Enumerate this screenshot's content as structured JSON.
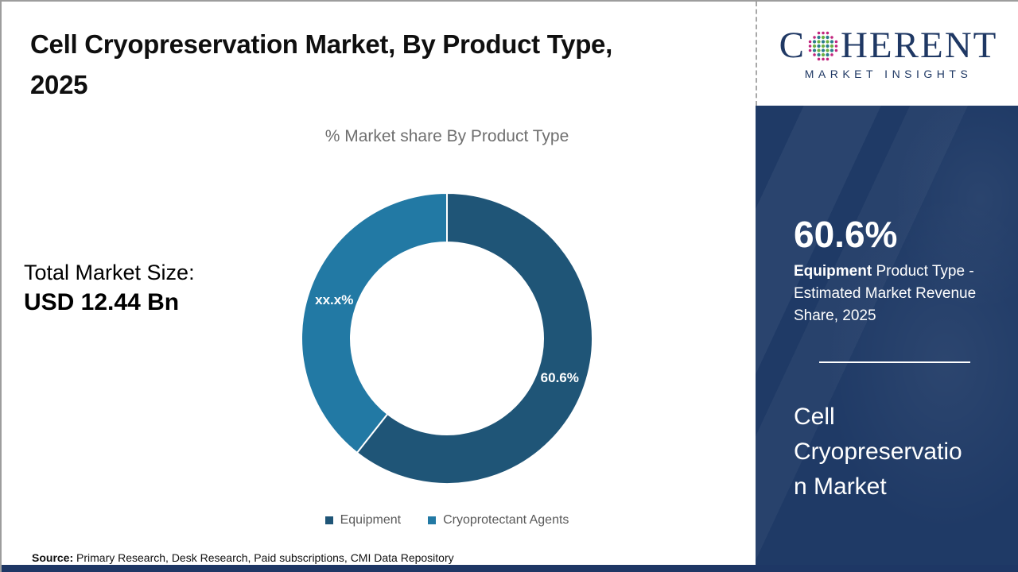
{
  "page": {
    "title_line1": "Cell Cryopreservation Market, By Product Type,",
    "title_line2": "2025",
    "source_label": "Source:",
    "source_text": " Primary Research, Desk Research, Paid subscriptions, CMI Data Repository"
  },
  "logo": {
    "word_start": "C",
    "word_end": "HERENT",
    "subtitle": "MARKET INSIGHTS"
  },
  "left_panel": {
    "total_label": "Total Market Size:",
    "total_value": "USD 12.44 Bn"
  },
  "chart_data": {
    "type": "pie",
    "donut": true,
    "title": "% Market share By Product Type",
    "start_angle_deg": 0,
    "legend_position": "bottom",
    "series": [
      {
        "name": "Equipment",
        "value": 60.6,
        "label": "60.6%",
        "color": "#1f5577"
      },
      {
        "name": "Cryoprotectant Agents",
        "value": 39.4,
        "label": "xx.x%",
        "color": "#2279a4"
      }
    ]
  },
  "sidebar": {
    "stat_value": "60.6%",
    "stat_desc_bold": "Equipment",
    "stat_desc_rest": " Product Type - Estimated Market Revenue Share, 2025",
    "market_name": "Cell Cryopreservation Market"
  },
  "colors": {
    "donut_equipment": "#1f5577",
    "donut_cryoprotectant": "#2279a4",
    "sidebar_bg": "#1f3a66",
    "bottom_bar": "#1e3765",
    "logo_navy": "#1f3864",
    "globe_teal": "#2c7d8c",
    "globe_green": "#6cb043",
    "globe_magenta": "#c2267e",
    "subtitle_gray": "#6f6f6f",
    "legend_text_gray": "#595959"
  }
}
